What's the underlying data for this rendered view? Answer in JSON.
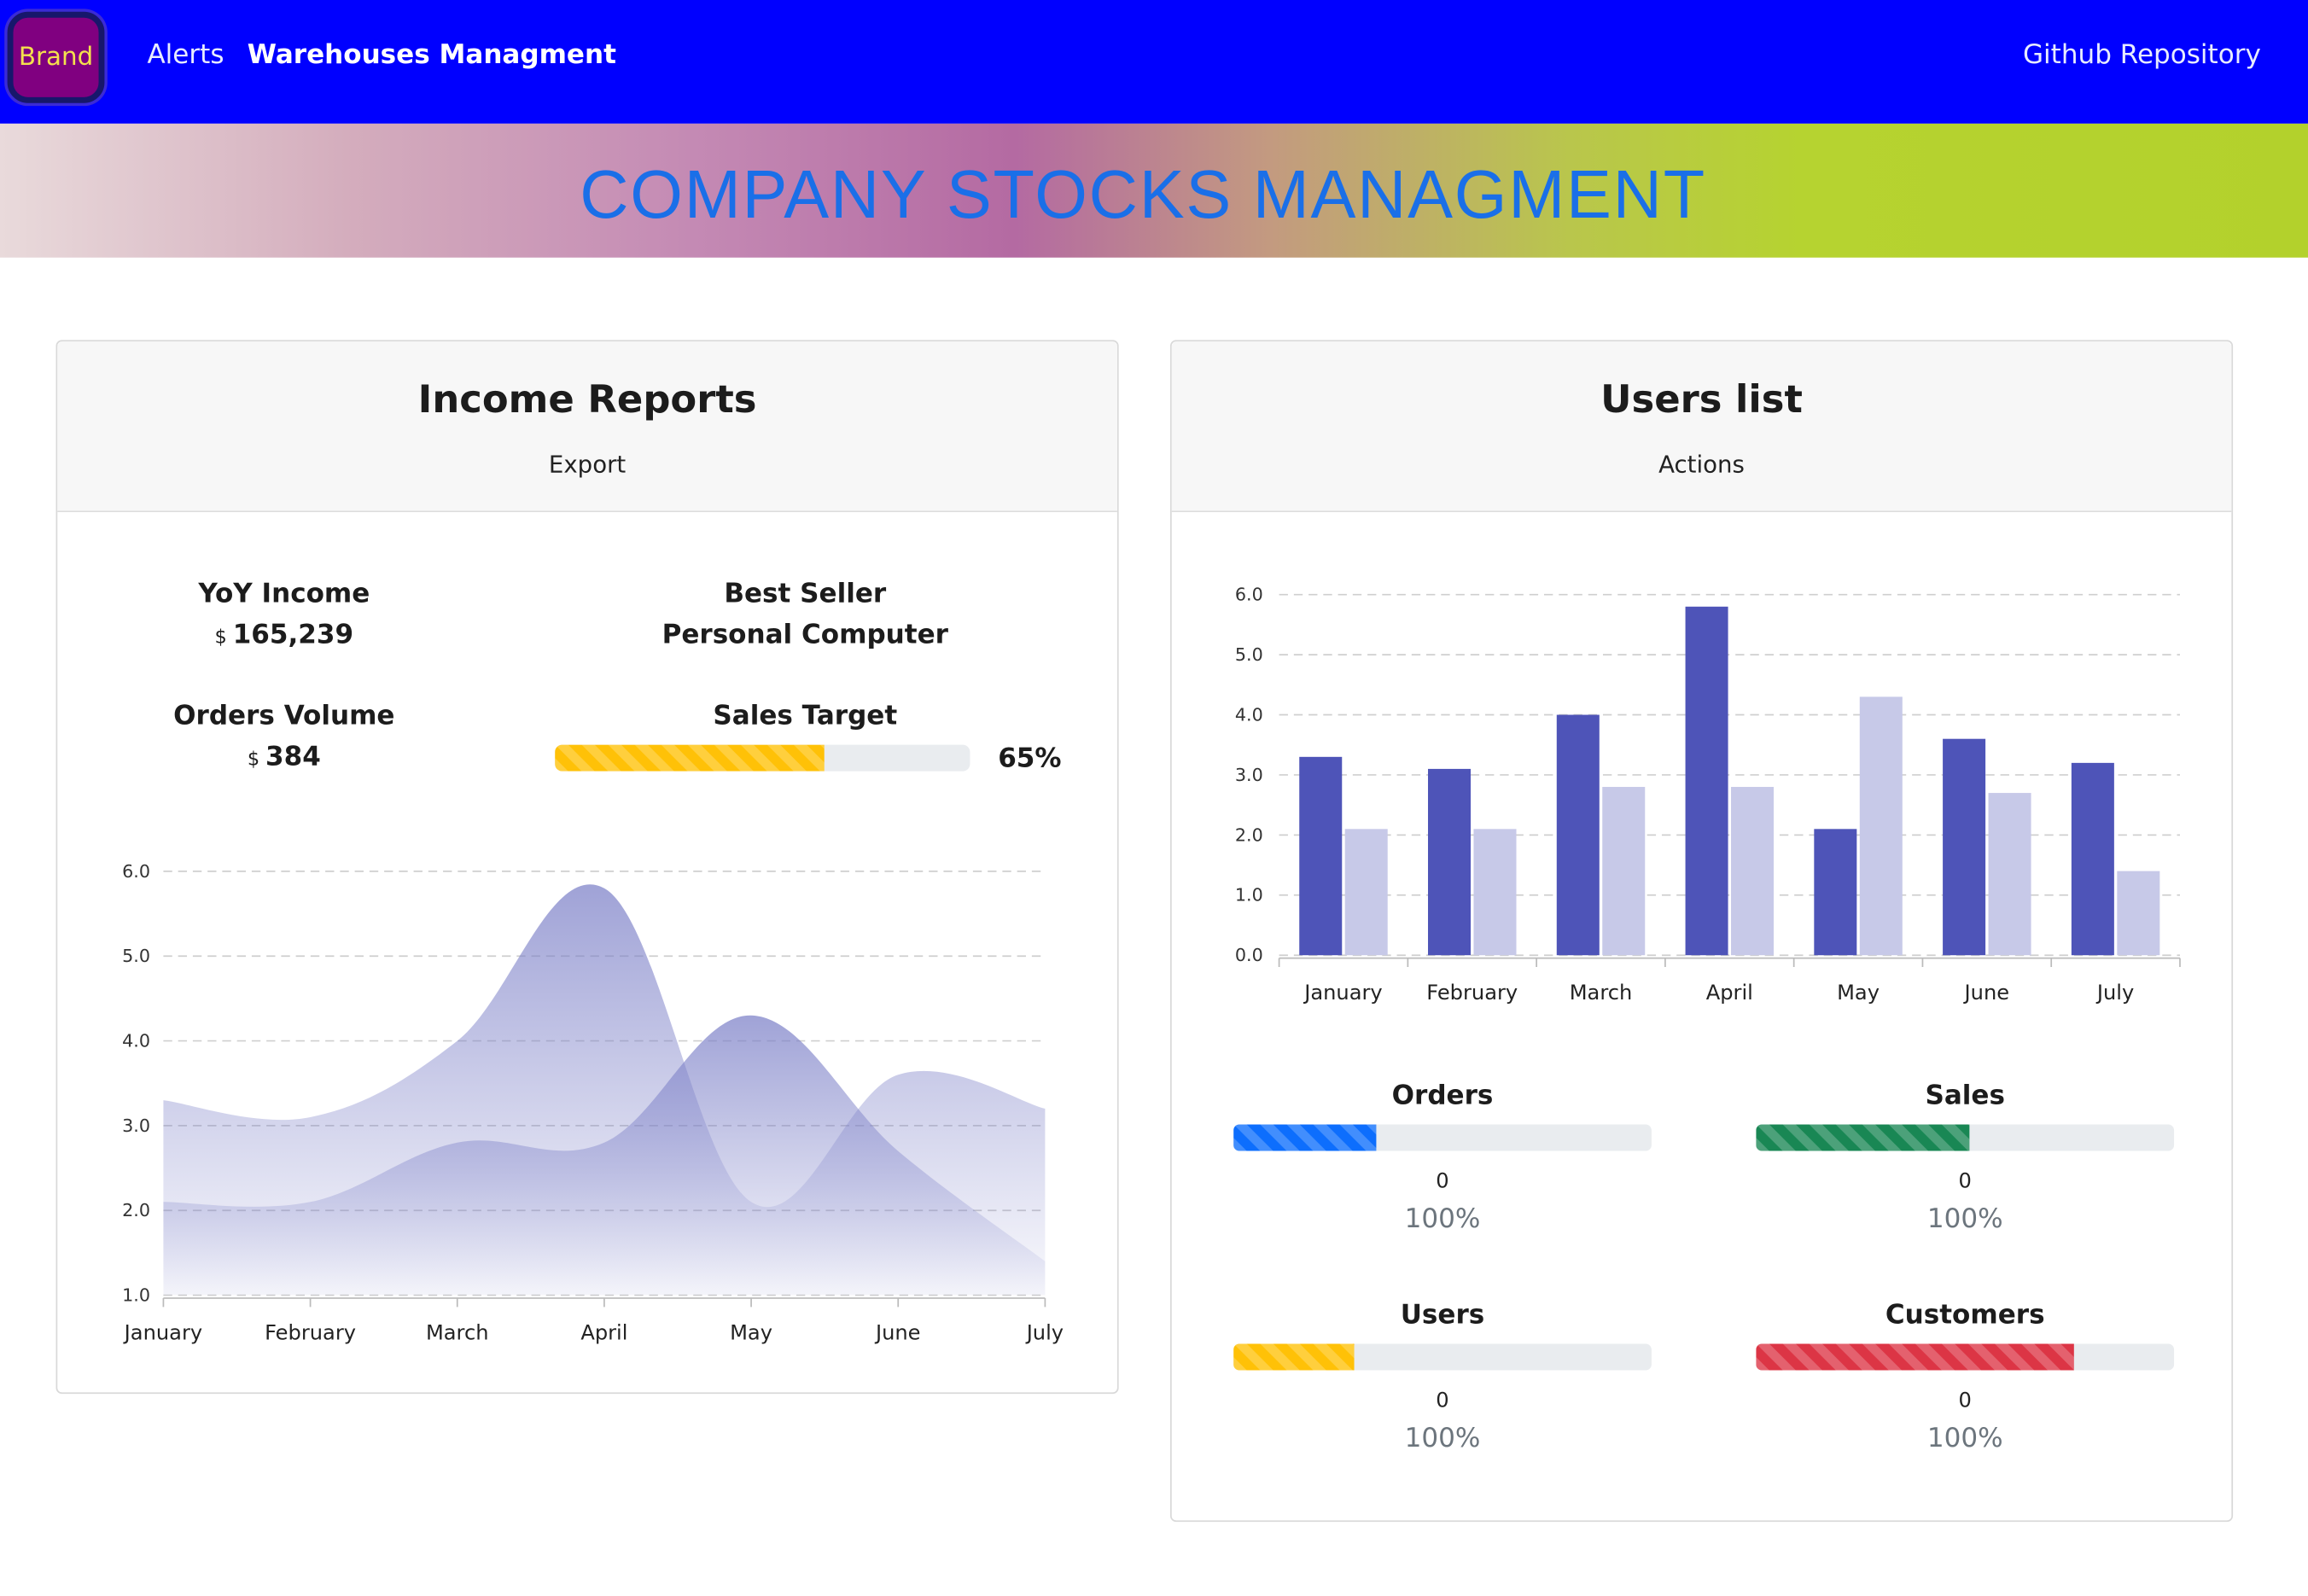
{
  "navbar": {
    "brand": "Brand",
    "links": [
      {
        "label": "Alerts",
        "active": false
      },
      {
        "label": "Warehouses Managment",
        "active": true
      }
    ],
    "right_link": "Github Repository",
    "colors": {
      "background": "#0000ff",
      "brand_bg": "#800080",
      "brand_text": "#f4e04d"
    }
  },
  "banner": {
    "title": "COMPANY STOCKS MANAGMENT"
  },
  "income_card": {
    "title": "Income Reports",
    "action": "Export",
    "stats": {
      "yoy_income": {
        "label": "YoY Income",
        "currency": "$",
        "value": "165,239"
      },
      "best_seller": {
        "label": "Best Seller",
        "value": "Personal Computer"
      },
      "orders_volume": {
        "label": "Orders Volume",
        "currency": "$",
        "value": "384"
      },
      "sales_target": {
        "label": "Sales Target",
        "percent": 65,
        "percent_label": "65%",
        "color": "#ffc107"
      }
    }
  },
  "users_card": {
    "title": "Users list",
    "action": "Actions",
    "stats": [
      {
        "label": "Orders",
        "count": "0",
        "percent_label": "100%",
        "fill": 0.34,
        "color": "#0d6efd"
      },
      {
        "label": "Sales",
        "count": "0",
        "percent_label": "100%",
        "fill": 0.51,
        "color": "#198754"
      },
      {
        "label": "Users",
        "count": "0",
        "percent_label": "100%",
        "fill": 0.29,
        "color": "#ffc107"
      },
      {
        "label": "Customers",
        "count": "0",
        "percent_label": "100%",
        "fill": 0.76,
        "color": "#dc3545"
      }
    ]
  },
  "chart_data": [
    {
      "type": "area",
      "categories": [
        "January",
        "February",
        "March",
        "April",
        "May",
        "June",
        "July"
      ],
      "series": [
        {
          "values": [
            3.3,
            3.1,
            4.0,
            5.8,
            2.1,
            3.6,
            3.2
          ],
          "color": "#7b7fc7"
        },
        {
          "values": [
            2.1,
            2.1,
            2.8,
            2.8,
            4.3,
            2.7,
            1.4
          ],
          "color": "#7b7fc7"
        }
      ],
      "yticks": [
        "1.0",
        "2.0",
        "3.0",
        "4.0",
        "5.0",
        "6.0"
      ],
      "ylim": [
        1,
        6
      ],
      "grid": true
    },
    {
      "type": "bar",
      "categories": [
        "January",
        "February",
        "March",
        "April",
        "May",
        "June",
        "July"
      ],
      "series": [
        {
          "values": [
            3.3,
            3.1,
            4.0,
            5.8,
            2.1,
            3.6,
            3.2
          ],
          "color": "#4e54b8"
        },
        {
          "values": [
            2.1,
            2.1,
            2.8,
            2.8,
            4.3,
            2.7,
            1.4
          ],
          "color": "#c7c9e8"
        }
      ],
      "yticks": [
        "0.0",
        "1.0",
        "2.0",
        "3.0",
        "4.0",
        "5.0",
        "6.0"
      ],
      "ylim": [
        0,
        6
      ],
      "grid": true
    }
  ]
}
